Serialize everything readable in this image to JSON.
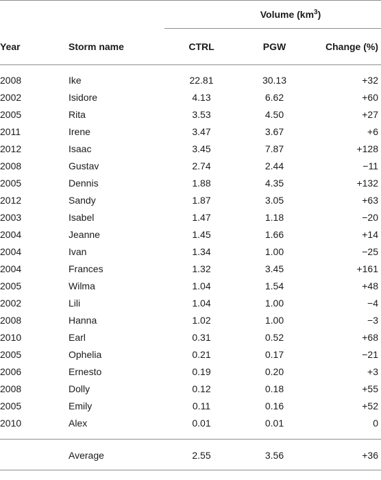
{
  "table": {
    "group_header": {
      "label": "Volume (km",
      "exponent": "3",
      "suffix": ")"
    },
    "columns": {
      "year": "Year",
      "storm_name": "Storm name",
      "ctrl": "CTRL",
      "pgw": "PGW",
      "change": "Change (%)"
    },
    "rows": [
      {
        "year": "2008",
        "name": "Ike",
        "ctrl": "22.81",
        "pgw": "30.13",
        "change": "+32"
      },
      {
        "year": "2002",
        "name": "Isidore",
        "ctrl": "4.13",
        "pgw": "6.62",
        "change": "+60"
      },
      {
        "year": "2005",
        "name": "Rita",
        "ctrl": "3.53",
        "pgw": "4.50",
        "change": "+27"
      },
      {
        "year": "2011",
        "name": "Irene",
        "ctrl": "3.47",
        "pgw": "3.67",
        "change": "+6"
      },
      {
        "year": "2012",
        "name": "Isaac",
        "ctrl": "3.45",
        "pgw": "7.87",
        "change": "+128"
      },
      {
        "year": "2008",
        "name": "Gustav",
        "ctrl": "2.74",
        "pgw": "2.44",
        "change": "−11"
      },
      {
        "year": "2005",
        "name": "Dennis",
        "ctrl": "1.88",
        "pgw": "4.35",
        "change": "+132"
      },
      {
        "year": "2012",
        "name": "Sandy",
        "ctrl": "1.87",
        "pgw": "3.05",
        "change": "+63"
      },
      {
        "year": "2003",
        "name": "Isabel",
        "ctrl": "1.47",
        "pgw": "1.18",
        "change": "−20"
      },
      {
        "year": "2004",
        "name": "Jeanne",
        "ctrl": "1.45",
        "pgw": "1.66",
        "change": "+14"
      },
      {
        "year": "2004",
        "name": "Ivan",
        "ctrl": "1.34",
        "pgw": "1.00",
        "change": "−25"
      },
      {
        "year": "2004",
        "name": "Frances",
        "ctrl": "1.32",
        "pgw": "3.45",
        "change": "+161"
      },
      {
        "year": "2005",
        "name": "Wilma",
        "ctrl": "1.04",
        "pgw": "1.54",
        "change": "+48"
      },
      {
        "year": "2002",
        "name": "Lili",
        "ctrl": "1.04",
        "pgw": "1.00",
        "change": "−4"
      },
      {
        "year": "2008",
        "name": "Hanna",
        "ctrl": "1.02",
        "pgw": "1.00",
        "change": "−3"
      },
      {
        "year": "2010",
        "name": "Earl",
        "ctrl": "0.31",
        "pgw": "0.52",
        "change": "+68"
      },
      {
        "year": "2005",
        "name": "Ophelia",
        "ctrl": "0.21",
        "pgw": "0.17",
        "change": "−21"
      },
      {
        "year": "2006",
        "name": "Ernesto",
        "ctrl": "0.19",
        "pgw": "0.20",
        "change": "+3"
      },
      {
        "year": "2008",
        "name": "Dolly",
        "ctrl": "0.12",
        "pgw": "0.18",
        "change": "+55"
      },
      {
        "year": "2005",
        "name": "Emily",
        "ctrl": "0.11",
        "pgw": "0.16",
        "change": "+52"
      },
      {
        "year": "2010",
        "name": "Alex",
        "ctrl": "0.01",
        "pgw": "0.01",
        "change": "0"
      }
    ],
    "average": {
      "label": "Average",
      "ctrl": "2.55",
      "pgw": "3.56",
      "change": "+36"
    }
  }
}
